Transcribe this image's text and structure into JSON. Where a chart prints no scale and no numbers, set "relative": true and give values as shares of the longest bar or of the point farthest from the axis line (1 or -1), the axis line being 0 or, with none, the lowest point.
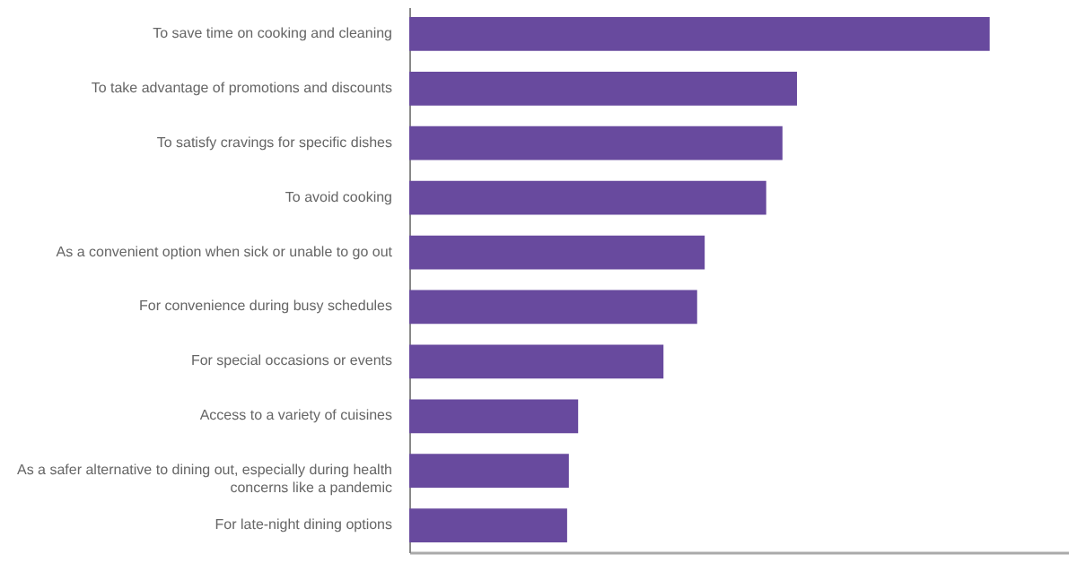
{
  "chart_data": {
    "type": "bar",
    "orientation": "horizontal",
    "relative": true,
    "grid": false,
    "categories": [
      "To save time on cooking and cleaning",
      "To take advantage of promotions and discounts",
      "To satisfy cravings for specific dishes",
      "To avoid cooking",
      "As a convenient option when sick or unable to go out",
      "For convenience during busy schedules",
      "For special occasions or events",
      "Access to a variety of cuisines",
      "As a safer alternative to dining out, especially during health concerns like a pandemic",
      "For late-night dining options"
    ],
    "values": [
      1,
      0.668,
      0.643,
      0.615,
      0.509,
      0.496,
      0.438,
      0.291,
      0.275,
      0.272
    ],
    "color": "#684a9e"
  }
}
